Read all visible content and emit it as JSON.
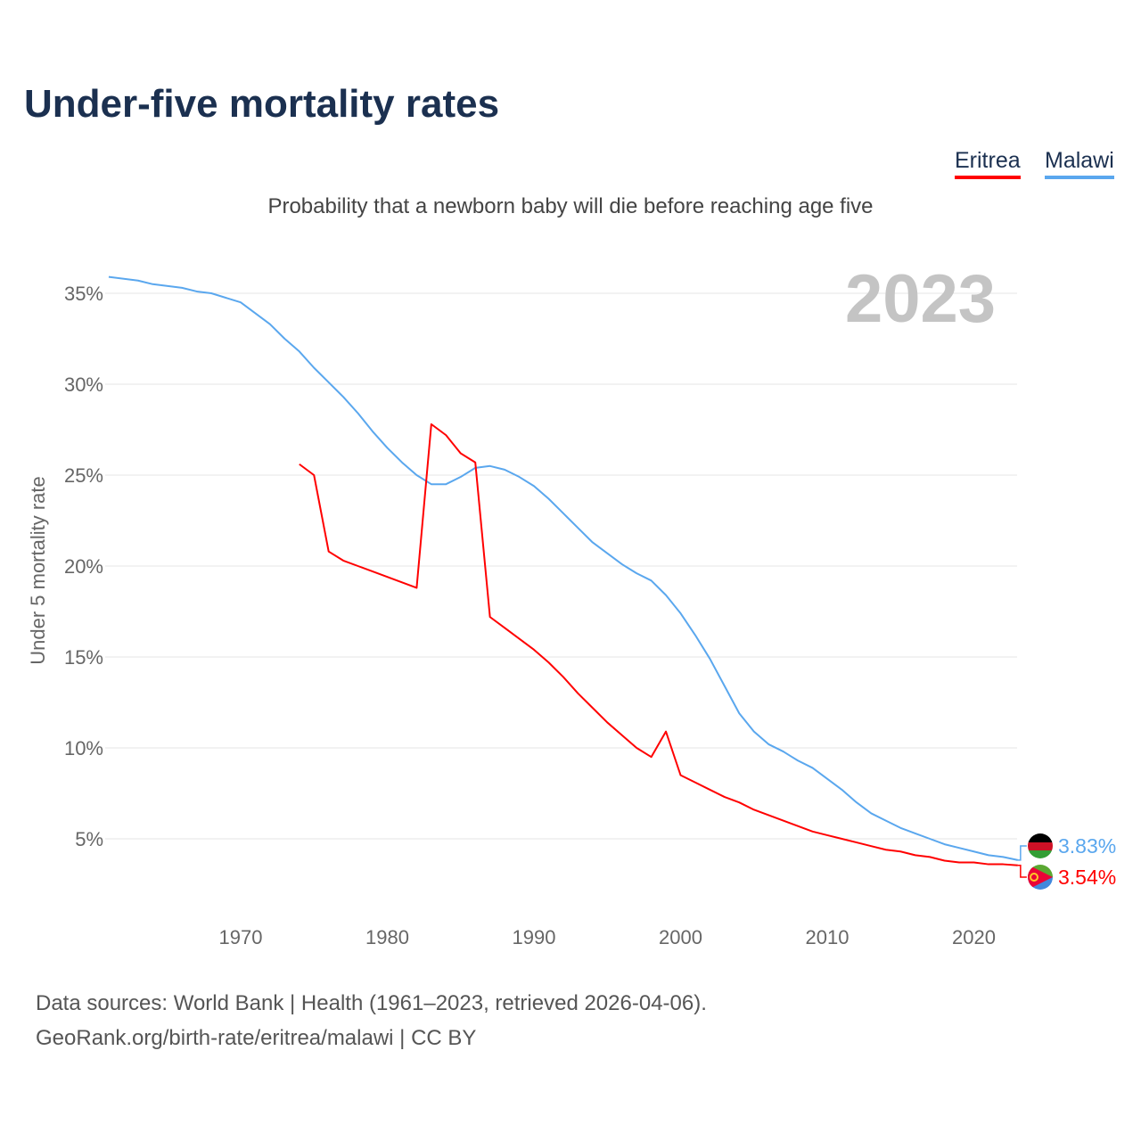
{
  "header": {
    "title": "Under-five mortality rates",
    "subtitle": "Probability that a newborn baby will die before reaching age five",
    "current_year": "2023"
  },
  "legend": [
    {
      "name": "Eritrea",
      "color": "#ff0000"
    },
    {
      "name": "Malawi",
      "color": "#5aa7ee"
    }
  ],
  "footer": {
    "line1": "Data sources: World Bank | Health (1961–2023, retrieved 2026-04-06).",
    "line2": "GeoRank.org/birth-rate/eritrea/malawi | CC BY"
  },
  "chart_data": {
    "type": "line",
    "title": "Under-five mortality rates",
    "ylabel": "Under 5 mortality rate",
    "xlim": [
      1961,
      2023
    ],
    "ylim": [
      0,
      37
    ],
    "x_ticks": [
      1970,
      1980,
      1990,
      2000,
      2010,
      2020
    ],
    "y_ticks": [
      5,
      10,
      15,
      20,
      25,
      30,
      35
    ],
    "y_tick_labels": [
      "5%",
      "10%",
      "15%",
      "20%",
      "25%",
      "30%",
      "35%"
    ],
    "series": [
      {
        "name": "Malawi",
        "color": "#5aa7ee",
        "end_label": "3.83%",
        "x": [
          1961,
          1963,
          1964,
          1966,
          1967,
          1968,
          1970,
          1971,
          1972,
          1973,
          1974,
          1975,
          1976,
          1977,
          1978,
          1979,
          1980,
          1981,
          1982,
          1983,
          1984,
          1985,
          1986,
          1987,
          1988,
          1989,
          1990,
          1991,
          1992,
          1993,
          1994,
          1995,
          1996,
          1997,
          1998,
          1999,
          2000,
          2001,
          2002,
          2003,
          2004,
          2005,
          2006,
          2007,
          2008,
          2009,
          2010,
          2011,
          2012,
          2013,
          2014,
          2015,
          2016,
          2017,
          2018,
          2019,
          2020,
          2021,
          2022,
          2023
        ],
        "values": [
          35.9,
          35.7,
          35.5,
          35.3,
          35.1,
          35.0,
          34.5,
          33.9,
          33.3,
          32.5,
          31.8,
          30.9,
          30.1,
          29.3,
          28.4,
          27.4,
          26.5,
          25.7,
          25.0,
          24.5,
          24.5,
          24.9,
          25.4,
          25.5,
          25.3,
          24.9,
          24.4,
          23.7,
          22.9,
          22.1,
          21.3,
          20.7,
          20.1,
          19.6,
          19.2,
          18.4,
          17.4,
          16.2,
          14.9,
          13.4,
          11.9,
          10.9,
          10.2,
          9.8,
          9.3,
          8.9,
          8.3,
          7.7,
          7.0,
          6.4,
          6.0,
          5.6,
          5.3,
          5.0,
          4.7,
          4.5,
          4.3,
          4.1,
          4.0,
          3.83
        ]
      },
      {
        "name": "Eritrea",
        "color": "#ff0000",
        "end_label": "3.54%",
        "x": [
          1974,
          1975,
          1976,
          1977,
          1978,
          1979,
          1980,
          1981,
          1982,
          1983,
          1984,
          1985,
          1986,
          1987,
          1988,
          1989,
          1990,
          1991,
          1992,
          1993,
          1994,
          1995,
          1996,
          1997,
          1998,
          1999,
          2000,
          2001,
          2002,
          2003,
          2004,
          2005,
          2006,
          2007,
          2008,
          2009,
          2010,
          2011,
          2012,
          2013,
          2014,
          2015,
          2016,
          2017,
          2018,
          2019,
          2020,
          2021,
          2022,
          2023
        ],
        "values": [
          25.6,
          25.0,
          20.8,
          20.3,
          20.0,
          19.7,
          19.4,
          19.1,
          18.8,
          27.8,
          27.2,
          26.2,
          25.7,
          17.2,
          16.6,
          16.0,
          15.4,
          14.7,
          13.9,
          13.0,
          12.2,
          11.4,
          10.7,
          10.0,
          9.5,
          10.9,
          8.5,
          8.1,
          7.7,
          7.3,
          7.0,
          6.6,
          6.3,
          6.0,
          5.7,
          5.4,
          5.2,
          5.0,
          4.8,
          4.6,
          4.4,
          4.3,
          4.1,
          4.0,
          3.8,
          3.7,
          3.7,
          3.6,
          3.6,
          3.54
        ]
      }
    ]
  }
}
